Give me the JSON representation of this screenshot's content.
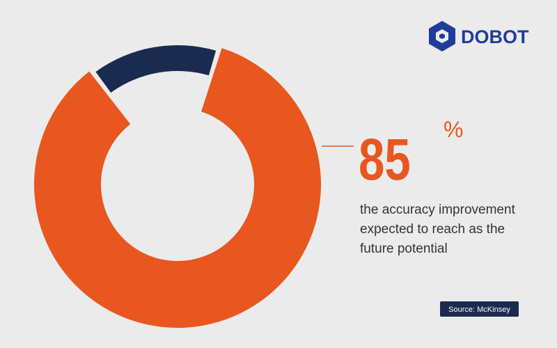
{
  "brand": "DOBOT",
  "chart_data": {
    "type": "donut",
    "values": [
      85,
      15
    ],
    "value_labels": [
      "85",
      null
    ],
    "unit": "%",
    "colors": [
      "#e8571f",
      "#1b2a4f"
    ],
    "annotation_lines": [
      "the accuracy improvement",
      "expected to reach as the",
      "future potential"
    ],
    "source": "Source: McKinsey"
  }
}
